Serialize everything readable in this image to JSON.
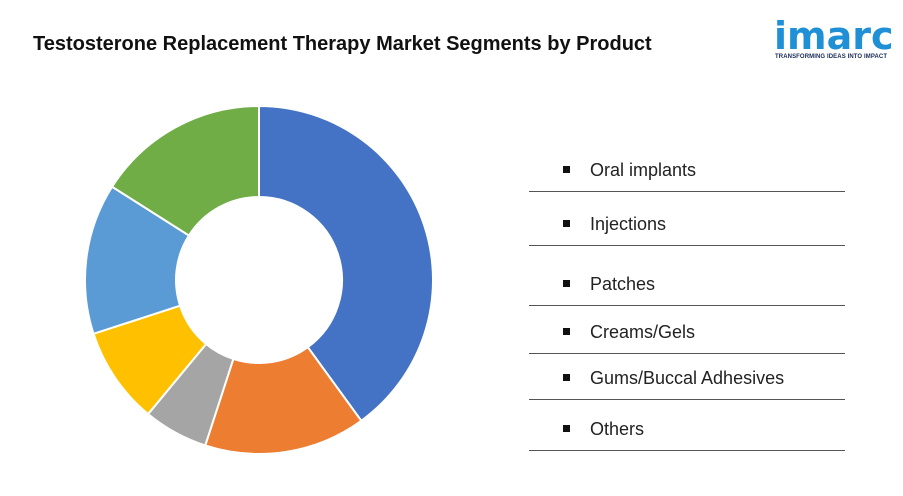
{
  "title": "Testosterone Replacement Therapy Market Segments by Product",
  "logo": {
    "word": "imarc",
    "tagline": "TRANSFORMING IDEAS INTO IMPACT"
  },
  "chart_data": {
    "type": "pie",
    "variant": "donut",
    "title": "Testosterone Replacement Therapy Market Segments by Product",
    "legend_position": "right",
    "categories": [
      "Oral implants",
      "Injections",
      "Patches",
      "Creams/Gels",
      "Gums/Buccal Adhesives",
      "Others"
    ],
    "values": [
      40,
      15,
      6,
      9,
      14,
      16
    ],
    "colors": [
      "#4472c4",
      "#ed7d31",
      "#a5a5a5",
      "#ffc000",
      "#5b9bd5",
      "#70ad47"
    ]
  },
  "legend": [
    "Oral implants",
    "Injections",
    "Patches",
    "Creams/Gels",
    "Gums/Buccal Adhesives",
    "Others"
  ]
}
